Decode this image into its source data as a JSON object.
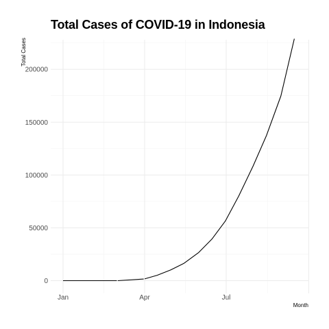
{
  "chart_data": {
    "type": "line",
    "title": "Total Cases of COVID-19 in Indonesia",
    "xlabel": "Month",
    "ylabel": "Total Cases",
    "x_ticks": [
      "Jan",
      "Apr",
      "Jul"
    ],
    "y_ticks": [
      "0",
      "50000",
      "100000",
      "150000",
      "200000"
    ],
    "ylim": [
      -12000,
      228000
    ],
    "grid": true,
    "line_color": "#000000",
    "series": [
      {
        "segments": [
          [
            {
              "x": "2020-01-01",
              "y": 0
            },
            {
              "x": "2020-03-01",
              "y": 0
            }
          ],
          [
            {
              "x": "2020-03-02",
              "y": 2
            },
            {
              "x": "2020-03-31",
              "y": 1528
            }
          ],
          [
            {
              "x": "2020-04-01",
              "y": 1677
            },
            {
              "x": "2020-04-15",
              "y": 5136
            },
            {
              "x": "2020-04-30",
              "y": 10118
            },
            {
              "x": "2020-05-15",
              "y": 16496
            },
            {
              "x": "2020-05-31",
              "y": 26473
            },
            {
              "x": "2020-06-15",
              "y": 39294
            },
            {
              "x": "2020-06-30",
              "y": 56385
            },
            {
              "x": "2020-07-15",
              "y": 80094
            },
            {
              "x": "2020-07-31",
              "y": 108376
            },
            {
              "x": "2020-08-15",
              "y": 137468
            },
            {
              "x": "2020-08-31",
              "y": 174796
            },
            {
              "x": "2020-09-15",
              "y": 228993
            }
          ]
        ]
      }
    ]
  }
}
